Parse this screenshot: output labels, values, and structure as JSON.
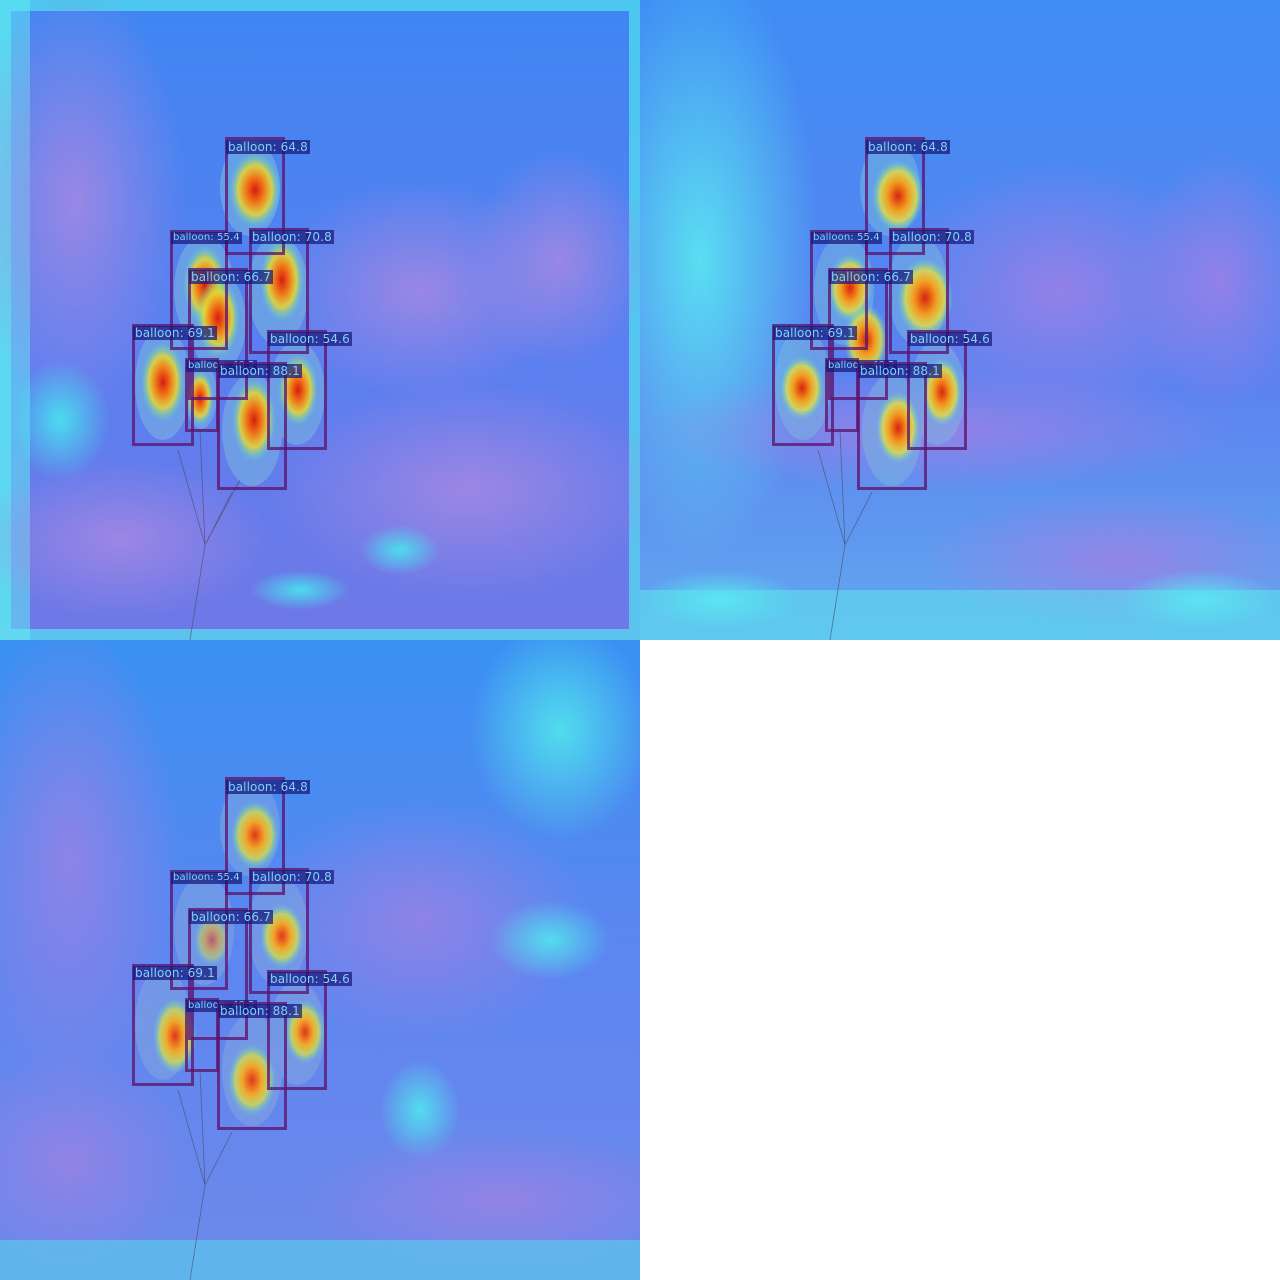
{
  "panels": [
    {
      "id": "p1",
      "label_color": "#7fd0ff",
      "detections": [
        {
          "text": "balloon: 64.8"
        },
        {
          "text": "balloon: 55.4"
        },
        {
          "text": "balloon: 70.8"
        },
        {
          "text": "balloon: 66.7"
        },
        {
          "text": "balloon: 69.1"
        },
        {
          "text": "balloon: 54.6"
        },
        {
          "text": "balloon: 40.2"
        },
        {
          "text": "balloon: 88.1"
        }
      ]
    },
    {
      "id": "p2",
      "detections": [
        {
          "text": "balloon: 64.8"
        },
        {
          "text": "balloon: 55.4"
        },
        {
          "text": "balloon: 70.8"
        },
        {
          "text": "balloon: 66.7"
        },
        {
          "text": "balloon: 69.1"
        },
        {
          "text": "balloon: 54.6"
        },
        {
          "text": "balloon: 40.2"
        },
        {
          "text": "balloon: 88.1"
        }
      ]
    },
    {
      "id": "p3",
      "detections": [
        {
          "text": "balloon: 64.8"
        },
        {
          "text": "balloon: 55.4"
        },
        {
          "text": "balloon: 70.8"
        },
        {
          "text": "balloon: 66.7"
        },
        {
          "text": "balloon: 69.1"
        },
        {
          "text": "balloon: 54.6"
        },
        {
          "text": "balloon: 40.2"
        },
        {
          "text": "balloon: 88.1"
        }
      ]
    }
  ],
  "colors": {
    "heat_low": "#3a7cf0",
    "heat_mid": "#40e0e8",
    "heat_high": "#e83a1e",
    "cloud": "#9a7ee0",
    "box": "#5c146e",
    "label_bg": "#18187a"
  }
}
